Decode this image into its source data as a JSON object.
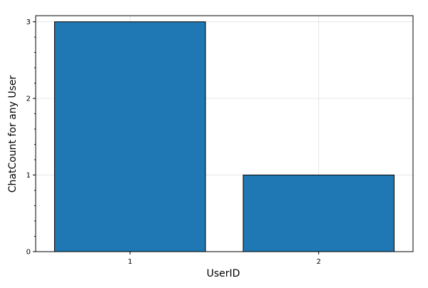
{
  "chart_data": {
    "type": "bar",
    "categories": [
      "1",
      "2"
    ],
    "values": [
      3,
      1
    ],
    "xlabel": "UserID",
    "ylabel": "ChatCount for any User",
    "ylim": [
      0,
      3.08
    ],
    "yticks": [
      "0",
      "1",
      "2",
      "3"
    ],
    "grid": true,
    "bar_color": "#1f77b4",
    "bar_edge_color": "#000000"
  }
}
